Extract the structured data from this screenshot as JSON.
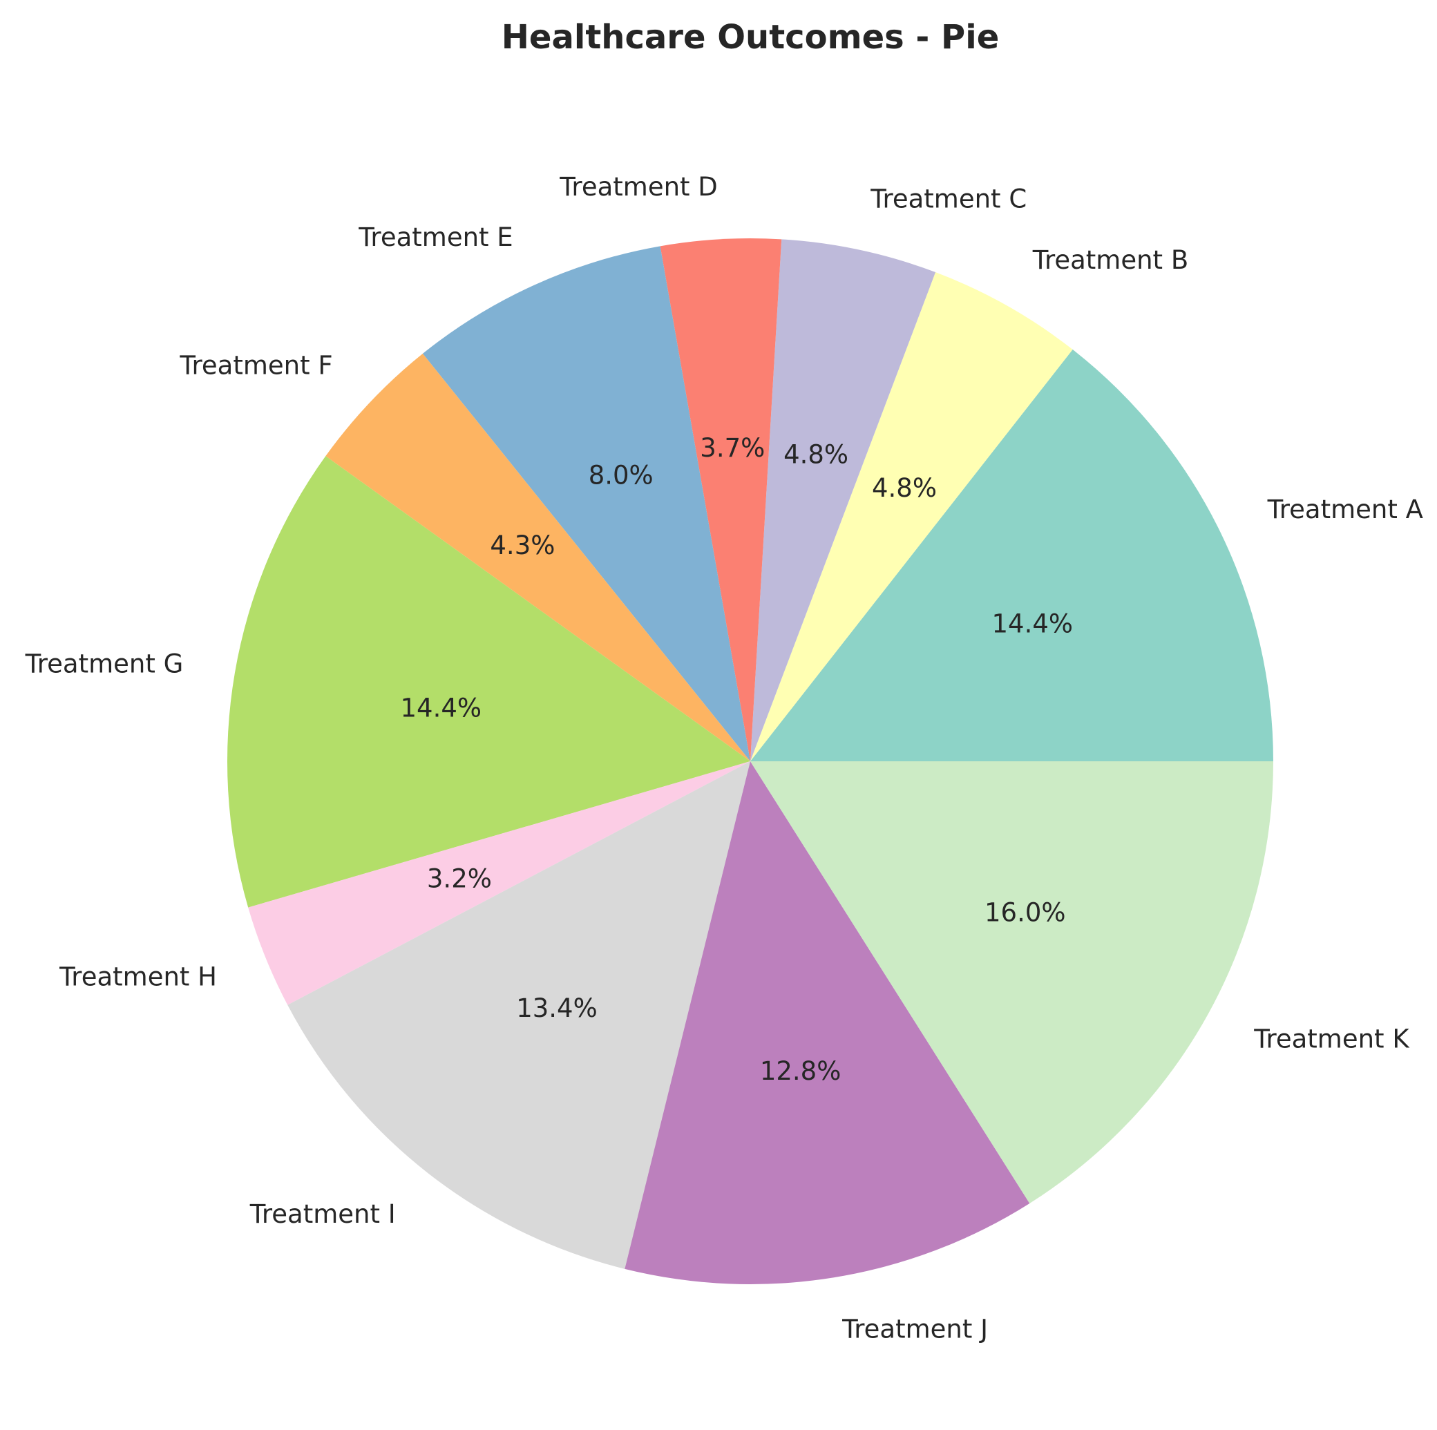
{
  "chart_data": {
    "type": "pie",
    "title": "Healthcare Outcomes - Pie",
    "start_angle_deg": 0,
    "direction": "counterclockwise",
    "slices": [
      {
        "label": "Treatment A",
        "value": 14.4,
        "pct_label": "14.4%",
        "color": "#8dd3c7"
      },
      {
        "label": "Treatment B",
        "value": 4.8,
        "pct_label": "4.8%",
        "color": "#ffffb3"
      },
      {
        "label": "Treatment C",
        "value": 4.8,
        "pct_label": "4.8%",
        "color": "#bebada"
      },
      {
        "label": "Treatment D",
        "value": 3.7,
        "pct_label": "3.7%",
        "color": "#fb8072"
      },
      {
        "label": "Treatment E",
        "value": 8.0,
        "pct_label": "8.0%",
        "color": "#80b1d3"
      },
      {
        "label": "Treatment F",
        "value": 4.3,
        "pct_label": "4.3%",
        "color": "#fdb462"
      },
      {
        "label": "Treatment G",
        "value": 14.4,
        "pct_label": "14.4%",
        "color": "#b3de69"
      },
      {
        "label": "Treatment H",
        "value": 3.2,
        "pct_label": "3.2%",
        "color": "#fccde5"
      },
      {
        "label": "Treatment I",
        "value": 13.4,
        "pct_label": "13.4%",
        "color": "#d9d9d9"
      },
      {
        "label": "Treatment J",
        "value": 12.8,
        "pct_label": "12.8%",
        "color": "#bc80bd"
      },
      {
        "label": "Treatment K",
        "value": 16.0,
        "pct_label": "16.0%",
        "color": "#ccebc5"
      }
    ]
  }
}
